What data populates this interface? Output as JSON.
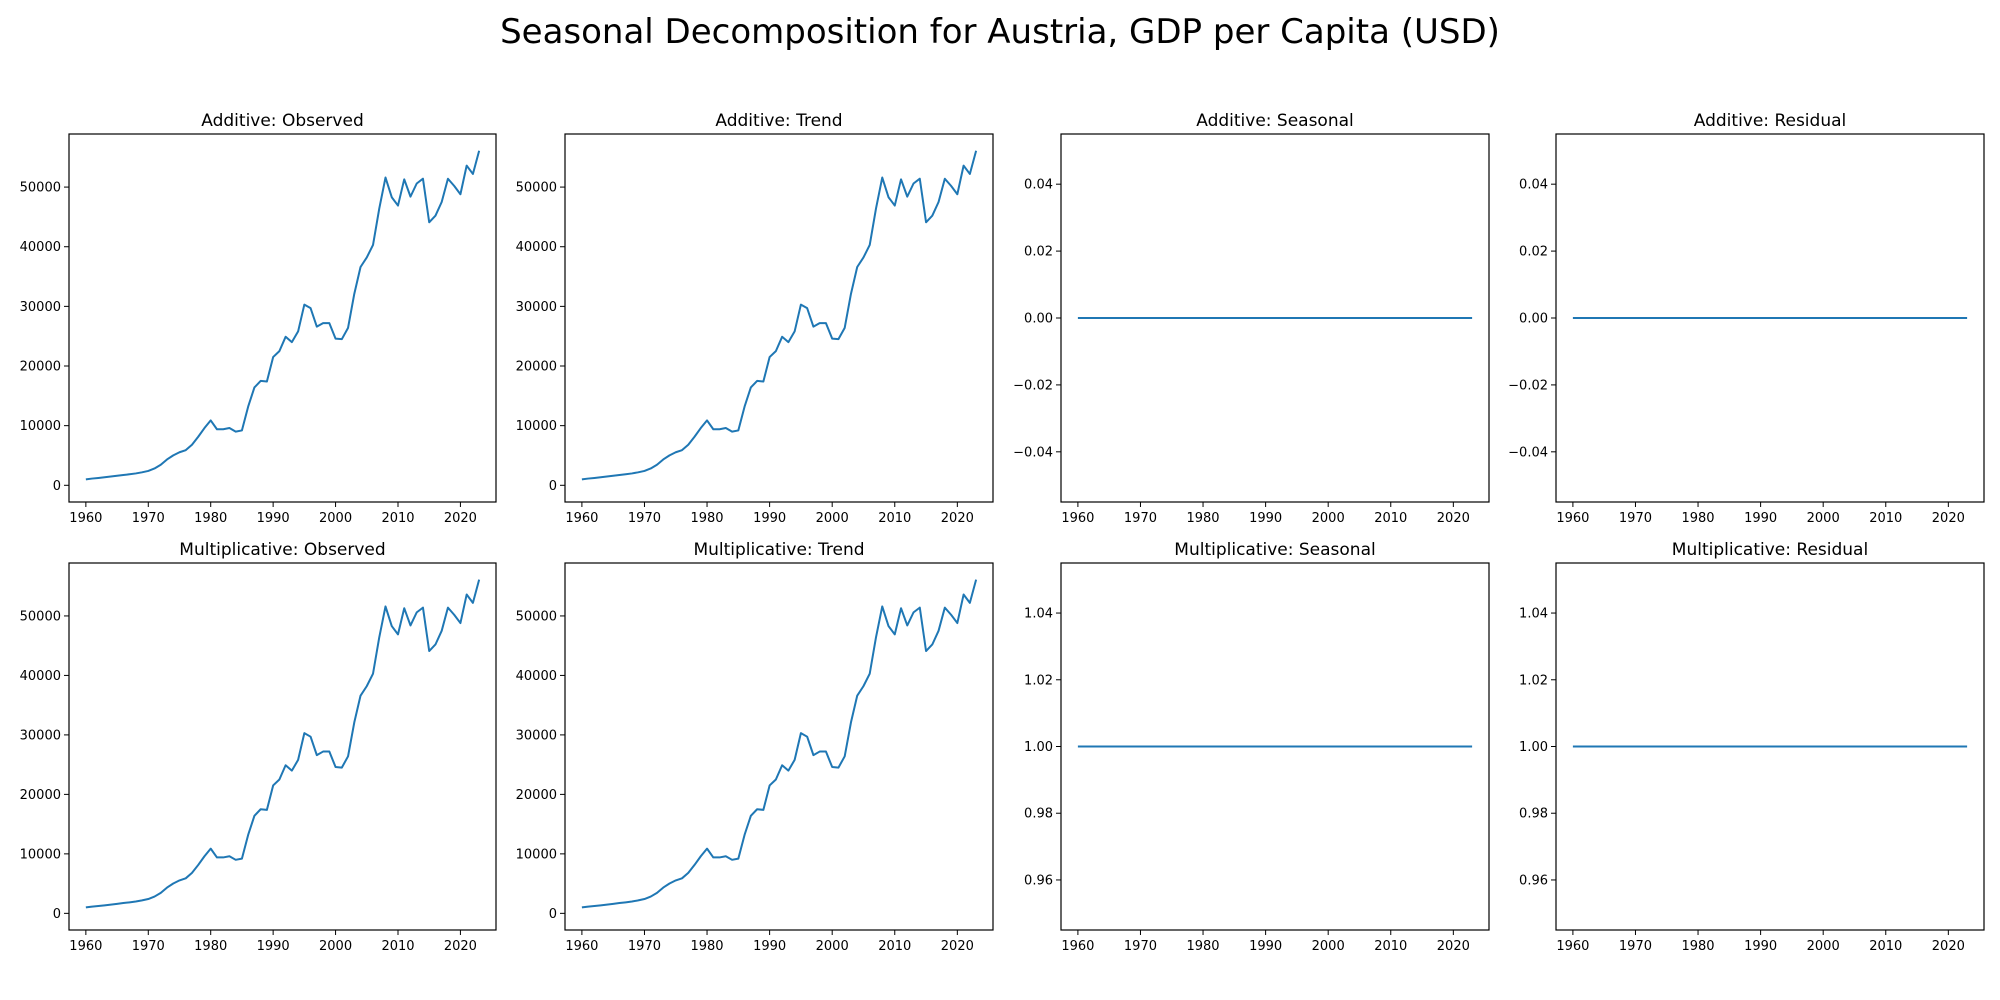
{
  "figure": {
    "title": "Seasonal Decomposition for Austria, GDP per Capita (USD)"
  },
  "style": {
    "line_color": "#1f77b4",
    "axis_color": "#000000",
    "background": "#ffffff"
  },
  "chart_data": [
    {
      "type": "line",
      "title": "Additive: Observed",
      "xlim": [
        1957.3,
        2025.7
      ],
      "ylim": [
        -2800,
        58900
      ],
      "xticks": [
        1960,
        1970,
        1980,
        1990,
        2000,
        2010,
        2020
      ],
      "xtick_labels": [
        "1960",
        "1970",
        "1980",
        "1990",
        "2000",
        "2010",
        "2020"
      ],
      "yticks": [
        0,
        10000,
        20000,
        30000,
        40000,
        50000
      ],
      "ytick_labels": [
        "0",
        "10000",
        "20000",
        "30000",
        "40000",
        "50000"
      ],
      "series": [
        {
          "ref": "gdp"
        }
      ]
    },
    {
      "type": "line",
      "title": "Additive: Trend",
      "xlim": [
        1957.3,
        2025.7
      ],
      "ylim": [
        -2800,
        58900
      ],
      "xticks": [
        1960,
        1970,
        1980,
        1990,
        2000,
        2010,
        2020
      ],
      "xtick_labels": [
        "1960",
        "1970",
        "1980",
        "1990",
        "2000",
        "2010",
        "2020"
      ],
      "yticks": [
        0,
        10000,
        20000,
        30000,
        40000,
        50000
      ],
      "ytick_labels": [
        "0",
        "10000",
        "20000",
        "30000",
        "40000",
        "50000"
      ],
      "series": [
        {
          "ref": "gdp"
        }
      ]
    },
    {
      "type": "line",
      "title": "Additive: Seasonal",
      "xlim": [
        1957.3,
        2025.7
      ],
      "ylim": [
        -0.055,
        0.055
      ],
      "xticks": [
        1960,
        1970,
        1980,
        1990,
        2000,
        2010,
        2020
      ],
      "xtick_labels": [
        "1960",
        "1970",
        "1980",
        "1990",
        "2000",
        "2010",
        "2020"
      ],
      "yticks": [
        -0.04,
        -0.02,
        0.0,
        0.02,
        0.04
      ],
      "ytick_labels": [
        "−0.04",
        "−0.02",
        "0.00",
        "0.02",
        "0.04"
      ],
      "series": [
        {
          "constant": 0
        }
      ]
    },
    {
      "type": "line",
      "title": "Additive: Residual",
      "xlim": [
        1957.3,
        2025.7
      ],
      "ylim": [
        -0.055,
        0.055
      ],
      "xticks": [
        1960,
        1970,
        1980,
        1990,
        2000,
        2010,
        2020
      ],
      "xtick_labels": [
        "1960",
        "1970",
        "1980",
        "1990",
        "2000",
        "2010",
        "2020"
      ],
      "yticks": [
        -0.04,
        -0.02,
        0.0,
        0.02,
        0.04
      ],
      "ytick_labels": [
        "−0.04",
        "−0.02",
        "0.00",
        "0.02",
        "0.04"
      ],
      "series": [
        {
          "constant": 0
        }
      ]
    },
    {
      "type": "line",
      "title": "Multiplicative: Observed",
      "xlim": [
        1957.3,
        2025.7
      ],
      "ylim": [
        -2800,
        58900
      ],
      "xticks": [
        1960,
        1970,
        1980,
        1990,
        2000,
        2010,
        2020
      ],
      "xtick_labels": [
        "1960",
        "1970",
        "1980",
        "1990",
        "2000",
        "2010",
        "2020"
      ],
      "yticks": [
        0,
        10000,
        20000,
        30000,
        40000,
        50000
      ],
      "ytick_labels": [
        "0",
        "10000",
        "20000",
        "30000",
        "40000",
        "50000"
      ],
      "series": [
        {
          "ref": "gdp"
        }
      ]
    },
    {
      "type": "line",
      "title": "Multiplicative: Trend",
      "xlim": [
        1957.3,
        2025.7
      ],
      "ylim": [
        -2800,
        58900
      ],
      "xticks": [
        1960,
        1970,
        1980,
        1990,
        2000,
        2010,
        2020
      ],
      "xtick_labels": [
        "1960",
        "1970",
        "1980",
        "1990",
        "2000",
        "2010",
        "2020"
      ],
      "yticks": [
        0,
        10000,
        20000,
        30000,
        40000,
        50000
      ],
      "ytick_labels": [
        "0",
        "10000",
        "20000",
        "30000",
        "40000",
        "50000"
      ],
      "series": [
        {
          "ref": "gdp"
        }
      ]
    },
    {
      "type": "line",
      "title": "Multiplicative: Seasonal",
      "xlim": [
        1957.3,
        2025.7
      ],
      "ylim": [
        0.945,
        1.055
      ],
      "xticks": [
        1960,
        1970,
        1980,
        1990,
        2000,
        2010,
        2020
      ],
      "xtick_labels": [
        "1960",
        "1970",
        "1980",
        "1990",
        "2000",
        "2010",
        "2020"
      ],
      "yticks": [
        0.96,
        0.98,
        1.0,
        1.02,
        1.04
      ],
      "ytick_labels": [
        "0.96",
        "0.98",
        "1.00",
        "1.02",
        "1.04"
      ],
      "series": [
        {
          "constant": 1
        }
      ]
    },
    {
      "type": "line",
      "title": "Multiplicative: Residual",
      "xlim": [
        1957.3,
        2025.7
      ],
      "ylim": [
        0.945,
        1.055
      ],
      "xticks": [
        1960,
        1970,
        1980,
        1990,
        2000,
        2010,
        2020
      ],
      "xtick_labels": [
        "1960",
        "1970",
        "1980",
        "1990",
        "2000",
        "2010",
        "2020"
      ],
      "yticks": [
        0.96,
        0.98,
        1.0,
        1.02,
        1.04
      ],
      "ytick_labels": [
        "0.96",
        "0.98",
        "1.00",
        "1.02",
        "1.04"
      ],
      "series": [
        {
          "constant": 1
        }
      ]
    }
  ],
  "gdp": {
    "x": [
      1960,
      1961,
      1962,
      1963,
      1964,
      1965,
      1966,
      1967,
      1968,
      1969,
      1970,
      1971,
      1972,
      1973,
      1974,
      1975,
      1976,
      1977,
      1978,
      1979,
      1980,
      1981,
      1982,
      1983,
      1984,
      1985,
      1986,
      1987,
      1988,
      1989,
      1990,
      1991,
      1992,
      1993,
      1994,
      1995,
      1996,
      1997,
      1998,
      1999,
      2000,
      2001,
      2002,
      2003,
      2004,
      2005,
      2006,
      2007,
      2008,
      2009,
      2010,
      2011,
      2012,
      2013,
      2014,
      2015,
      2016,
      2017,
      2018,
      2019,
      2020,
      2021,
      2022,
      2023
    ],
    "y": [
      1000,
      1130,
      1230,
      1350,
      1470,
      1600,
      1730,
      1850,
      1990,
      2180,
      2410,
      2820,
      3440,
      4330,
      5020,
      5540,
      5890,
      6800,
      8140,
      9600,
      10880,
      9400,
      9400,
      9600,
      9000,
      9200,
      13200,
      16400,
      17500,
      17400,
      21500,
      22500,
      24900,
      24000,
      25800,
      30300,
      29700,
      26600,
      27200,
      27200,
      24600,
      24500,
      26400,
      32100,
      36600,
      38200,
      40300,
      46400,
      51600,
      48300,
      46900,
      51300,
      48400,
      50600,
      51400,
      44100,
      45200,
      47500,
      51400,
      50200,
      48800,
      53600,
      52200,
      56100
    ]
  }
}
